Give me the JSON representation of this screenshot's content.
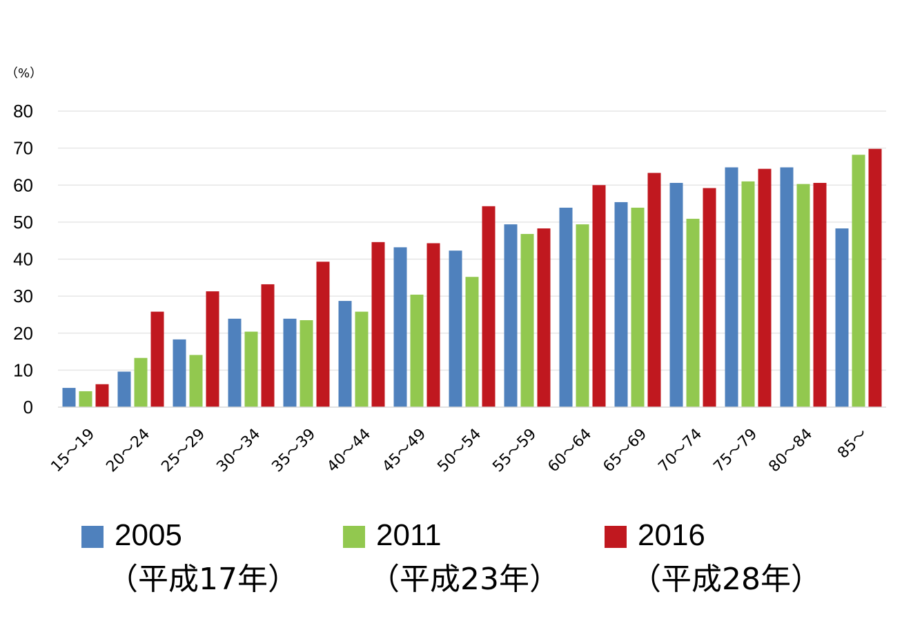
{
  "chart_data": {
    "type": "bar",
    "unit_label": "（%）",
    "categories": [
      "15～19",
      "20～24",
      "25～29",
      "30～34",
      "35～39",
      "40～44",
      "45～49",
      "50～54",
      "55～59",
      "60～64",
      "65～69",
      "70～74",
      "75～79",
      "80～84",
      "85～"
    ],
    "series": [
      {
        "name": "2005",
        "era": "（平成17年）",
        "color": "#4f81bd",
        "values": [
          5.2,
          9.6,
          18.3,
          23.9,
          23.9,
          28.7,
          43.2,
          42.3,
          49.4,
          53.9,
          55.4,
          60.6,
          64.8,
          64.8,
          48.3
        ]
      },
      {
        "name": "2011",
        "era": "（平成23年）",
        "color": "#92c84f",
        "values": [
          4.3,
          13.3,
          14.1,
          20.4,
          23.5,
          25.8,
          30.4,
          35.2,
          46.8,
          49.4,
          53.9,
          50.9,
          61.0,
          60.3,
          68.2
        ]
      },
      {
        "name": "2016",
        "era": "（平成28年）",
        "color": "#c0181f",
        "values": [
          6.2,
          25.8,
          31.3,
          33.2,
          39.3,
          44.6,
          44.3,
          54.3,
          48.3,
          60.0,
          63.3,
          59.2,
          64.4,
          60.6,
          69.8
        ]
      }
    ],
    "yticks": [
      "0",
      "10",
      "20",
      "30",
      "40",
      "50",
      "60",
      "70",
      "80"
    ],
    "ylim": [
      0,
      80
    ],
    "grid": true,
    "legend_position": "bottom"
  }
}
